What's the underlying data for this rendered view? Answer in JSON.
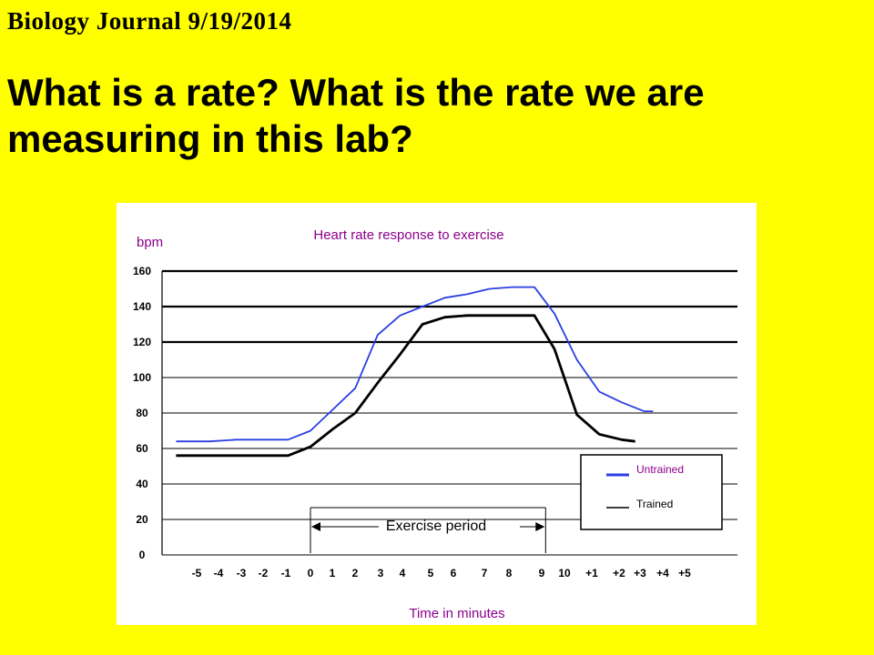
{
  "slide": {
    "journal_title": "Biology Journal 9/19/2014",
    "question": "What is a rate?  What is the rate we are measuring in this lab?"
  },
  "colors": {
    "background": "#ffff00",
    "untrained": "#2a3fe0",
    "trained": "#000000",
    "chart_text": "#8b008b"
  },
  "chart_data": {
    "type": "line",
    "title": "Heart rate response to exercise",
    "ylabel": "bpm",
    "xlabel": "Time in minutes",
    "ylim": [
      0,
      160
    ],
    "yticks": [
      0,
      20,
      40,
      60,
      80,
      100,
      120,
      140,
      160
    ],
    "grid": true,
    "x_tick_labels": [
      "-5",
      "-4",
      "-3",
      "-2",
      "-1",
      "0",
      "1",
      "2",
      "3",
      "4",
      "5",
      "6",
      "7",
      "8",
      "9",
      "10",
      "+1",
      "+2",
      "+3",
      "+4",
      "+5"
    ],
    "annotation": "Exercise period",
    "legend": {
      "placement": "bottom-right",
      "entries": [
        "Untrained",
        "Trained"
      ]
    },
    "series": [
      {
        "name": "Untrained",
        "points": [
          [
            -6,
            64
          ],
          [
            -4.5,
            64
          ],
          [
            -3.3,
            65
          ],
          [
            -1,
            65
          ],
          [
            0,
            70
          ],
          [
            1,
            82
          ],
          [
            2,
            94
          ],
          [
            3,
            124
          ],
          [
            4,
            135
          ],
          [
            5,
            140
          ],
          [
            6,
            145
          ],
          [
            7,
            147
          ],
          [
            8,
            150
          ],
          [
            9,
            151
          ],
          [
            10,
            151
          ],
          [
            10.9,
            136
          ],
          [
            11.9,
            110
          ],
          [
            12.9,
            92
          ],
          [
            13.9,
            86
          ],
          [
            14.9,
            81
          ],
          [
            15.3,
            81
          ]
        ]
      },
      {
        "name": "Trained",
        "points": [
          [
            -6,
            56
          ],
          [
            -1,
            56
          ],
          [
            0,
            61
          ],
          [
            1,
            71
          ],
          [
            2,
            80
          ],
          [
            3,
            97
          ],
          [
            4,
            113
          ],
          [
            5,
            130
          ],
          [
            6,
            134
          ],
          [
            7,
            135
          ],
          [
            8,
            135
          ],
          [
            9,
            135
          ],
          [
            10,
            135
          ],
          [
            10.9,
            116
          ],
          [
            11.9,
            79
          ],
          [
            12.9,
            68
          ],
          [
            13.9,
            65
          ],
          [
            14.5,
            64
          ]
        ]
      }
    ]
  }
}
